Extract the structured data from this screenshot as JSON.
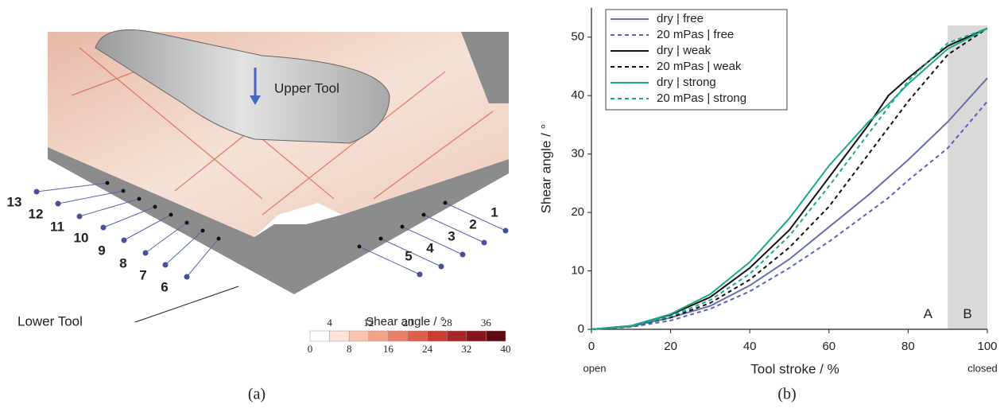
{
  "chart_data": {
    "type": "line",
    "x_label": "Tool stroke / %",
    "y_label": "Shear angle / °",
    "x": [
      0,
      10,
      20,
      30,
      40,
      50,
      60,
      70,
      75,
      80,
      90,
      100
    ],
    "xlim": [
      0,
      100
    ],
    "xticks": [
      0,
      20,
      40,
      60,
      80,
      100
    ],
    "ylim": [
      0,
      55
    ],
    "yticks": [
      0,
      10,
      20,
      30,
      40,
      50
    ],
    "legend": "upper-left",
    "highlight_x": [
      90,
      100
    ],
    "highlight_color": "#d9d9d9",
    "annotations": [
      "open",
      "closed",
      "A",
      "B"
    ],
    "panel_label": "(b)",
    "series": [
      {
        "name": "dry | free",
        "color": "#6a6ea8",
        "dash": false,
        "values": [
          0,
          0.5,
          2,
          4,
          7.5,
          12,
          17.5,
          23,
          26,
          29,
          35.5,
          43
        ]
      },
      {
        "name": "20 mPas | free",
        "color": "#5a5fc0",
        "dash": true,
        "values": [
          0,
          0.4,
          1.5,
          3.5,
          6.5,
          10.5,
          15,
          20,
          22.5,
          25.5,
          31,
          39
        ]
      },
      {
        "name": "dry | weak",
        "color": "#111111",
        "dash": false,
        "values": [
          0,
          0.6,
          2.5,
          5.5,
          10.5,
          17,
          26,
          35,
          40,
          43,
          48.5,
          51.5
        ]
      },
      {
        "name": "20 mPas | weak",
        "color": "#111111",
        "dash": true,
        "values": [
          0,
          0.5,
          2,
          4.5,
          8.5,
          14,
          21,
          30,
          34.5,
          39,
          47,
          51.5
        ]
      },
      {
        "name": "dry | strong",
        "color": "#1aa88a",
        "dash": false,
        "values": [
          0,
          0.6,
          2.6,
          6,
          11.5,
          19,
          28,
          35.5,
          38.5,
          42,
          48,
          51.5
        ]
      },
      {
        "name": "20 mPas | strong",
        "color": "#1aa88a",
        "dash": true,
        "values": [
          0,
          0.5,
          2.2,
          5,
          9.5,
          16,
          24.5,
          33.5,
          38,
          42.5,
          49,
          51.5
        ]
      }
    ]
  },
  "figure_a": {
    "panel_label": "(a)",
    "upper_tool": "Upper Tool",
    "lower_tool": "Lower Tool",
    "numbers": [
      "1",
      "2",
      "3",
      "4",
      "5",
      "6",
      "7",
      "8",
      "9",
      "10",
      "11",
      "12",
      "13"
    ],
    "colorbar": {
      "title": "Shear angle / °",
      "ticks_top": [
        4,
        12,
        20,
        28,
        36
      ],
      "ticks_bottom": [
        0,
        8,
        16,
        24,
        32,
        40
      ],
      "colors": [
        "#ffffff",
        "#fde3d8",
        "#f9c4b0",
        "#f2a48a",
        "#e98068",
        "#dd5e4b",
        "#c83c33",
        "#a92526",
        "#85151b",
        "#5e0a12"
      ]
    }
  }
}
